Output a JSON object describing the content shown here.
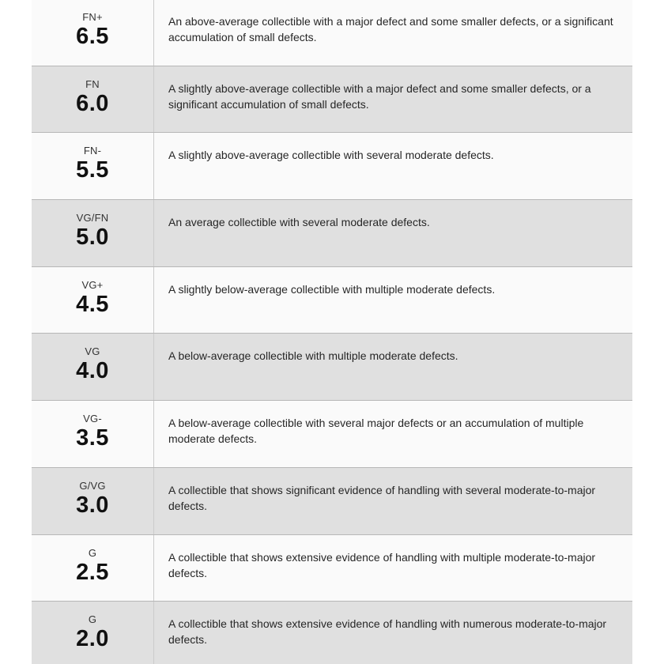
{
  "table": {
    "rows": [
      {
        "label": "FN+",
        "grade": "6.5",
        "description": "An above-average collectible with a major defect and some smaller defects, or a significant accumulation of small defects."
      },
      {
        "label": "FN",
        "grade": "6.0",
        "description": "A slightly above-average collectible with a major defect and some smaller defects, or a significant accumulation of small defects."
      },
      {
        "label": "FN-",
        "grade": "5.5",
        "description": "A slightly above-average collectible with several moderate defects."
      },
      {
        "label": "VG/FN",
        "grade": "5.0",
        "description": "An average collectible with several moderate defects."
      },
      {
        "label": "VG+",
        "grade": "4.5",
        "description": "A slightly below-average collectible with multiple moderate defects."
      },
      {
        "label": "VG",
        "grade": "4.0",
        "description": "A below-average collectible with multiple moderate defects."
      },
      {
        "label": "VG-",
        "grade": "3.5",
        "description": "A below-average collectible with several major defects or an accumulation of multiple moderate defects."
      },
      {
        "label": "G/VG",
        "grade": "3.0",
        "description": "A collectible that shows significant evidence of handling with several moderate-to-major defects."
      },
      {
        "label": "G",
        "grade": "2.5",
        "description": "A collectible that shows extensive evidence of handling with multiple moderate-to-major defects."
      },
      {
        "label": "G",
        "grade": "2.0",
        "description": "A collectible that shows extensive evidence of handling with numerous moderate-to-major defects."
      }
    ]
  },
  "colors": {
    "row_light": "#fafafa",
    "row_dark": "#e0e0e0",
    "row_border": "#b7b7b7",
    "column_divider": "#cccccc",
    "label_color": "#333333",
    "grade_color": "#111111",
    "description_color": "#262626"
  }
}
